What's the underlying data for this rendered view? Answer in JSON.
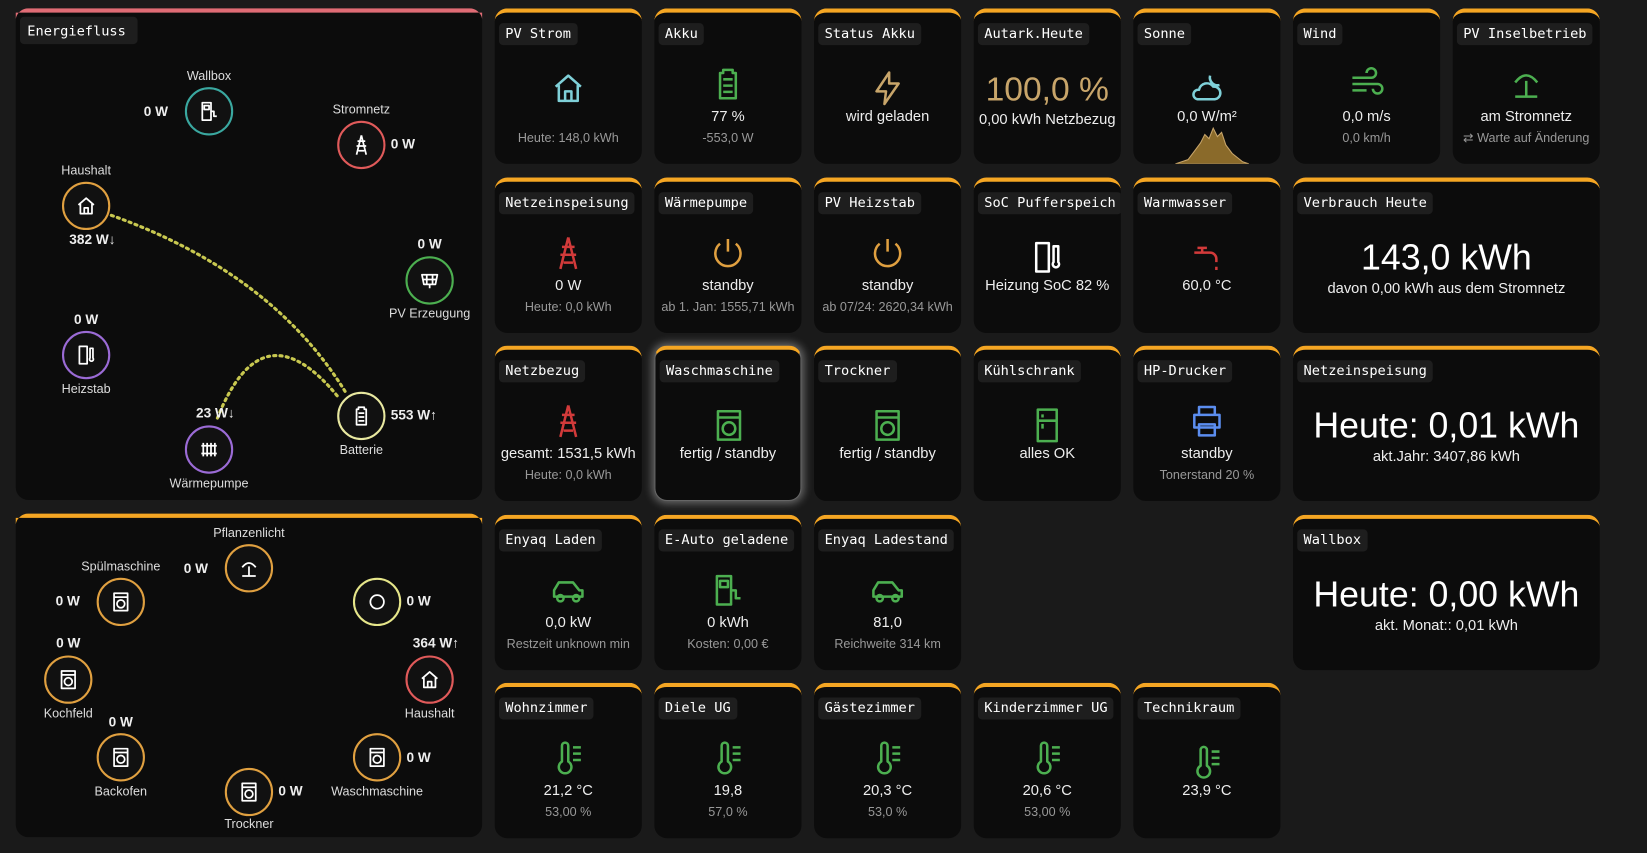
{
  "energy_flow": {
    "title": "Energiefluss",
    "nodes": [
      {
        "label": "Wallbox",
        "value": "0 W"
      },
      {
        "label": "Stromnetz",
        "value": "0 W"
      },
      {
        "label": "Haushalt",
        "value": "382 W↓"
      },
      {
        "label": "PV Erzeugung",
        "value": "0 W"
      },
      {
        "label": "Heizstab",
        "value": "0 W"
      },
      {
        "label": "Wärmepumpe",
        "value": "23 W↓"
      },
      {
        "label": "Batterie",
        "value": "553 W↑"
      }
    ]
  },
  "devices": {
    "nodes": [
      {
        "label": "Pflanzenlicht",
        "value": "0 W"
      },
      {
        "label": "Spülmaschine",
        "value": "0 W"
      },
      {
        "value": "0 W"
      },
      {
        "label": "Kochfeld",
        "value": "0 W"
      },
      {
        "label": "Haushalt",
        "value": "364 W↑"
      },
      {
        "label": "Backofen",
        "value": "0 W"
      },
      {
        "label": "Waschmaschine",
        "value": "0 W"
      },
      {
        "label": "Trockner",
        "value": "0 W"
      }
    ]
  },
  "cards": [
    {
      "title": "PV Strom",
      "secondary": "Heute: 148,0 kWh"
    },
    {
      "title": "Akku",
      "state": "77 %",
      "secondary": "-553,0 W"
    },
    {
      "title": "Status Akku",
      "state": "wird geladen"
    },
    {
      "title": "Autark.Heute",
      "state": "100,0 %",
      "secondary": "0,00 kWh Netzbezug"
    },
    {
      "title": "Sonne",
      "state": "0,0 W/m²"
    },
    {
      "title": "Wind",
      "state": "0,0 m/s",
      "secondary": "0,0 km/h"
    },
    {
      "title": "PV Inselbetrieb",
      "state": "am Stromnetz",
      "secondary": "⇄ Warte auf Änderung"
    },
    {
      "title": "Netzeinspeisung",
      "state": "0 W",
      "secondary": "Heute: 0,0 kWh"
    },
    {
      "title": "Wärmepumpe",
      "state": "standby",
      "secondary": "ab 1. Jan: 1555,71 kWh"
    },
    {
      "title": "PV Heizstab",
      "state": "standby",
      "secondary": "ab 07/24: 2620,34 kWh"
    },
    {
      "title": "SoC Pufferspeich",
      "state": "Heizung SoC 82 %"
    },
    {
      "title": "Warmwasser",
      "state": "60,0 °C"
    },
    {
      "title": "Verbrauch Heute",
      "state": "143,0 kWh",
      "secondary": "davon 0,00 kWh aus dem Stromnetz"
    },
    {
      "title": "Netzbezug",
      "state": "gesamt: 1531,5 kWh",
      "secondary": "Heute: 0,0 kWh"
    },
    {
      "title": "Waschmaschine",
      "state": "fertig / standby"
    },
    {
      "title": "Trockner",
      "state": "fertig / standby"
    },
    {
      "title": "Kühlschrank",
      "state": "alles OK"
    },
    {
      "title": "HP-Drucker",
      "state": "standby",
      "secondary": "Tonerstand 20 %"
    },
    {
      "title": "Netzeinspeisung",
      "state": "Heute: 0,01 kWh",
      "secondary": "akt.Jahr: 3407,86 kWh"
    },
    {
      "title": "Enyaq Laden",
      "state": "0,0 kW",
      "secondary": "Restzeit unknown min"
    },
    {
      "title": "E-Auto geladene",
      "state": "0 kWh",
      "secondary": "Kosten: 0,00 €"
    },
    {
      "title": "Enyaq Ladestand",
      "state": "81,0",
      "secondary": "Reichweite 314 km"
    },
    {
      "title": "Wallbox",
      "state": "Heute: 0,00 kWh",
      "secondary": "akt. Monat:: 0,01 kWh"
    },
    {
      "title": "Wohnzimmer",
      "state": "21,2 °C",
      "secondary": "53,00 %"
    },
    {
      "title": "Diele UG",
      "state": "19,8",
      "secondary": "57,0 %"
    },
    {
      "title": "Gästezimmer",
      "state": "20,3 °C",
      "secondary": "53,0 %"
    },
    {
      "title": "Kinderzimmer UG",
      "state": "20,6 °C",
      "secondary": "53,00 %"
    },
    {
      "title": "Technikraum",
      "state": "23,9 °C"
    }
  ]
}
